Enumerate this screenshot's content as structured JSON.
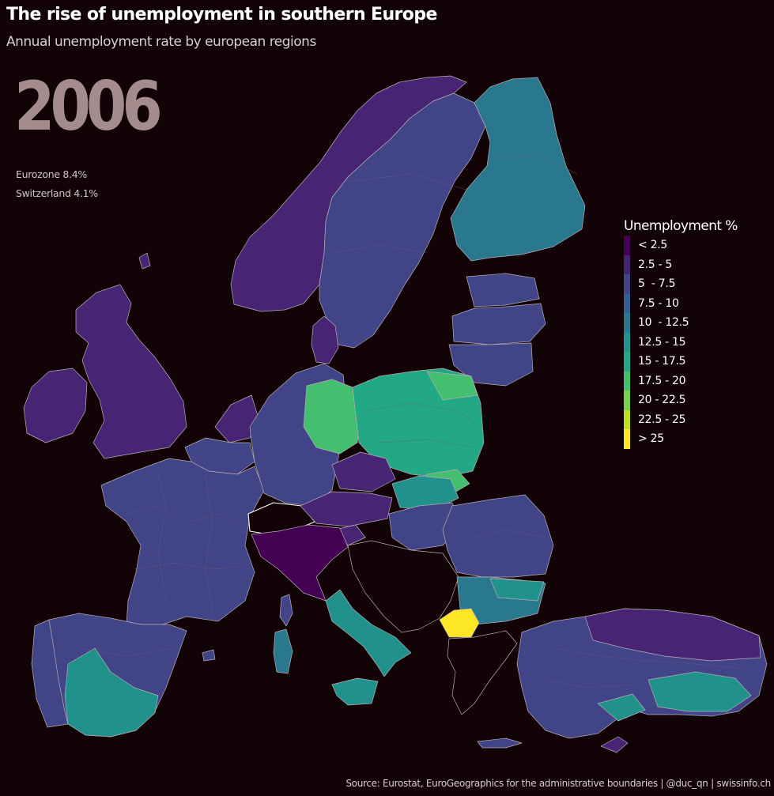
{
  "header": {
    "title": "The rise of unemployment in southern Europe",
    "subtitle": "Annual unemployment rate by european regions"
  },
  "year": "2006",
  "stats": {
    "eurozone": "Eurozone 8.4%",
    "switzerland": "Switzerland 4.1%"
  },
  "legend": {
    "title": "Unemployment %",
    "items": [
      {
        "label": "< 2.5",
        "color": "#440154"
      },
      {
        "label": "2.5 - 5",
        "color": "#482475"
      },
      {
        "label": "5  - 7.5",
        "color": "#414487"
      },
      {
        "label": "7.5 - 10",
        "color": "#355f8d"
      },
      {
        "label": "10  - 12.5",
        "color": "#2a788e"
      },
      {
        "label": "12.5 - 15",
        "color": "#21918c"
      },
      {
        "label": "15 - 17.5",
        "color": "#22a884"
      },
      {
        "label": "17.5 - 20",
        "color": "#44bf70"
      },
      {
        "label": "20 - 22.5",
        "color": "#7ad151"
      },
      {
        "label": "22.5 - 25",
        "color": "#bddf26"
      },
      {
        "label": "> 25",
        "color": "#fde725"
      }
    ]
  },
  "map": {
    "background": "#120307",
    "border_color": "#b9aeb4",
    "non_eu_fill": "#120307"
  },
  "source": "Source: Eurostat, EuroGeographics for the administrative boundaries | @duc_qn | swissinfo.ch"
}
